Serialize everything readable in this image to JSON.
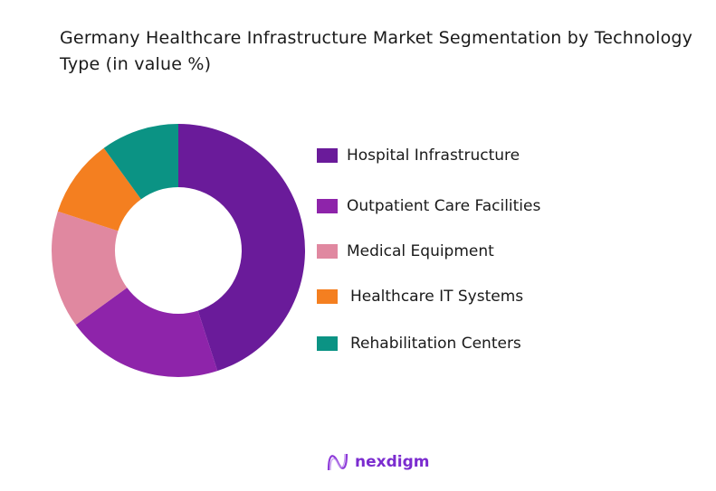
{
  "chart_data": {
    "type": "pie",
    "title": "Germany Healthcare Infrastructure Market Segmentation by Technology Type (in value %)",
    "donut": true,
    "legend_position": "right",
    "categories": [
      "Hospital Infrastructure",
      "Outpatient Care Facilities",
      "Medical Equipment",
      "Healthcare IT Systems",
      "Rehabilitation Centers"
    ],
    "values": [
      45,
      20,
      15,
      10,
      10
    ],
    "colors": [
      "#6a1b9a",
      "#8e24aa",
      "#e088a0",
      "#f47f20",
      "#0b9384"
    ]
  },
  "brand": {
    "name": "nexdigm",
    "color": "#7b2ccf"
  }
}
